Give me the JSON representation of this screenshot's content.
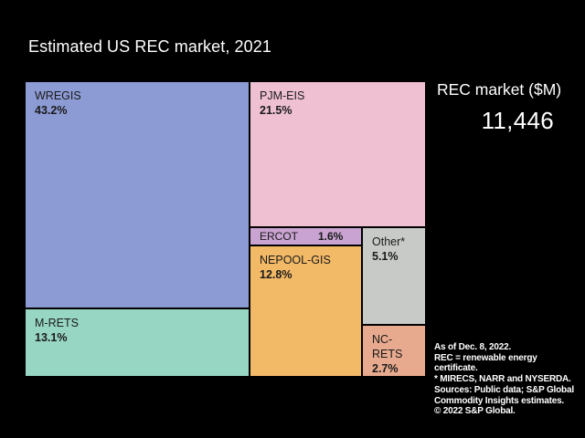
{
  "chart_data": {
    "type": "treemap",
    "title": "Estimated US REC market, 2021",
    "legend_position": "none",
    "total": {
      "label": "REC market ($M)",
      "value": 11446,
      "display": "11,446"
    },
    "segments": [
      {
        "name": "WREGIS",
        "value": 43.2,
        "pct_label": "43.2%",
        "color": "#8c9bd3"
      },
      {
        "name": "PJM-EIS",
        "value": 21.5,
        "pct_label": "21.5%",
        "color": "#eec0d2"
      },
      {
        "name": "M-RETS",
        "value": 13.1,
        "pct_label": "13.1%",
        "color": "#97d6c2"
      },
      {
        "name": "NEPOOL-GIS",
        "value": 12.8,
        "pct_label": "12.8%",
        "color": "#f2b967"
      },
      {
        "name": "Other*",
        "value": 5.1,
        "pct_label": "5.1%",
        "color": "#c8cac7"
      },
      {
        "name": "NC-RETS",
        "value": 2.7,
        "pct_label": "2.7%",
        "color": "#e7aa8e"
      },
      {
        "name": "ERCOT",
        "value": 1.6,
        "pct_label": "1.6%",
        "color": "#c9a3d2"
      }
    ]
  },
  "footnotes": {
    "lines": [
      "As of Dec. 8, 2022.",
      "REC = renewable energy",
      "certificate.",
      "* MIRECS, NARR and NYSERDA.",
      "Sources: Public data; S&P Global",
      "Commodity Insights estimates.",
      "© 2022 S&P Global."
    ]
  },
  "colors": {
    "background": "#000000",
    "text_light": "#ffffff",
    "text_dark": "#1a1a1a"
  }
}
